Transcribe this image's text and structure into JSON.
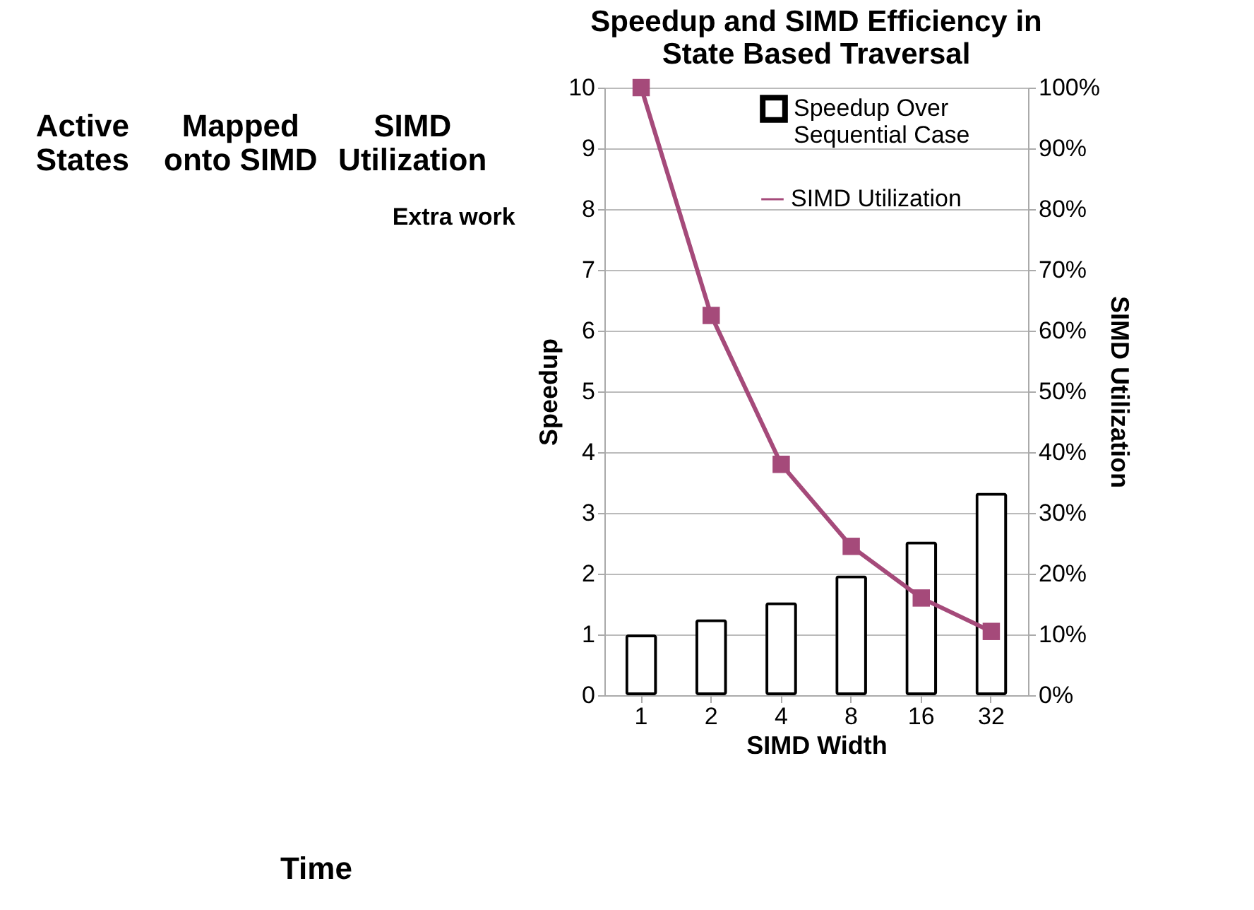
{
  "chart_data": [
    {
      "type": "other",
      "annotations": [
        "Active\nStates",
        "Mapped\nonto SIMD",
        "SIMD\nUtilization",
        "Extra work",
        "Time"
      ]
    },
    {
      "type": "bar",
      "title": "Speedup and SIMD Efficiency in\nState Based Traversal",
      "xlabel": "SIMD Width",
      "ylabel": "Speedup",
      "y2label": "SIMD Utilization",
      "categories": [
        "1",
        "2",
        "4",
        "8",
        "16",
        "32"
      ],
      "series": [
        {
          "name": "Speedup Over\nSequential Case",
          "type": "bar",
          "color": "#000000",
          "values": [
            1.0,
            1.25,
            1.53,
            1.97,
            2.53,
            3.33
          ]
        },
        {
          "name": "SIMD Utilization",
          "type": "line",
          "axis": "y2",
          "color": "#a54a7a",
          "marker": "square",
          "values": [
            100,
            62.5,
            38,
            24.5,
            16,
            10.5
          ]
        }
      ],
      "ylim": [
        0,
        10
      ],
      "yticks": [
        0,
        1,
        2,
        3,
        4,
        5,
        6,
        7,
        8,
        9,
        10
      ],
      "y2lim": [
        0,
        100
      ],
      "y2ticks": [
        {
          "value": 0,
          "label": "0%"
        },
        {
          "value": 10,
          "label": "10%"
        },
        {
          "value": 20,
          "label": "20%"
        },
        {
          "value": 30,
          "label": "30%"
        },
        {
          "value": 40,
          "label": "40%"
        },
        {
          "value": 50,
          "label": "50%"
        },
        {
          "value": 60,
          "label": "60%"
        },
        {
          "value": 70,
          "label": "70%"
        },
        {
          "value": 80,
          "label": "80%"
        },
        {
          "value": 90,
          "label": "90%"
        },
        {
          "value": 100,
          "label": "100%"
        }
      ],
      "grid": "y",
      "legend": "top right"
    }
  ]
}
